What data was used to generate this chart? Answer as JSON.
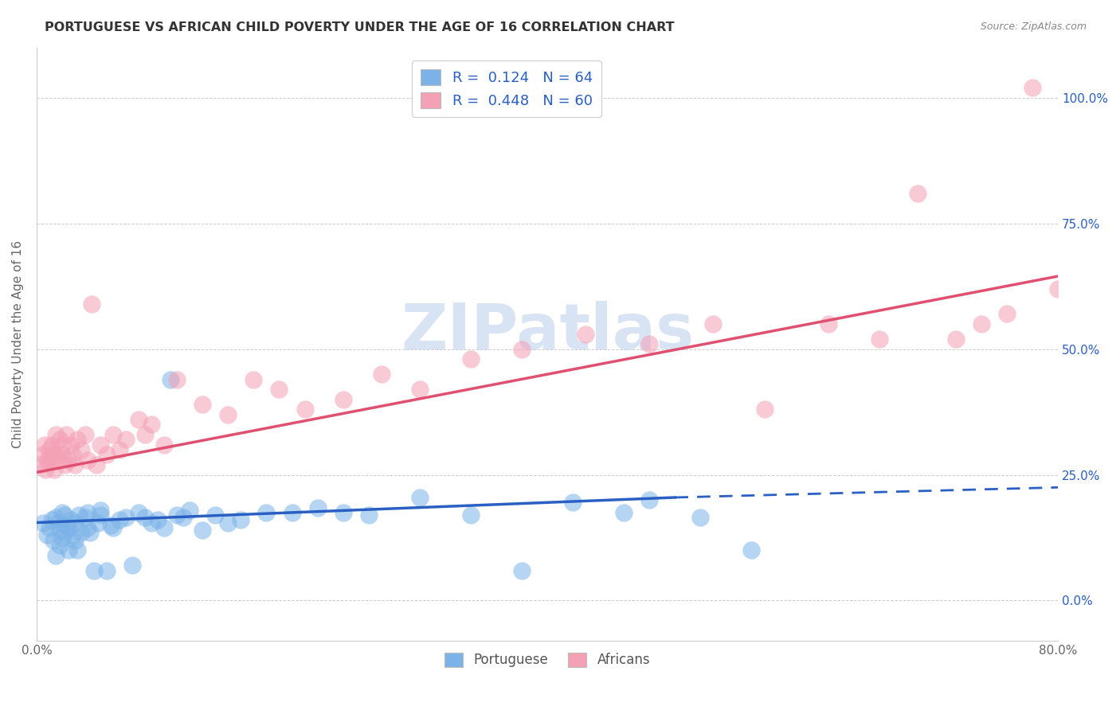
{
  "title": "PORTUGUESE VS AFRICAN CHILD POVERTY UNDER THE AGE OF 16 CORRELATION CHART",
  "source": "Source: ZipAtlas.com",
  "ylabel": "Child Poverty Under the Age of 16",
  "xlim": [
    0.0,
    0.8
  ],
  "ylim": [
    -0.08,
    1.1
  ],
  "yticks": [
    0.0,
    0.25,
    0.5,
    0.75,
    1.0
  ],
  "xticks": [
    0.0,
    0.8
  ],
  "portuguese_color": "#7ab3e8",
  "african_color": "#f4a0b5",
  "portuguese_line_color": "#2a5fc4",
  "african_line_color": "#e05070",
  "watermark_color": "#c8d8ee",
  "watermark": "ZIPatlas",
  "portuguese_R": 0.124,
  "portuguese_N": 64,
  "african_R": 0.448,
  "african_N": 60,
  "port_line_solid_end": 0.5,
  "port_line_dash_start": 0.5,
  "port_line_dash_end": 0.8,
  "port_line_y0": 0.155,
  "port_line_y1_solid": 0.205,
  "port_line_y1_dash": 0.225,
  "afr_line_y0": 0.255,
  "afr_line_y1": 0.645,
  "portuguese_scatter_x": [
    0.005,
    0.008,
    0.01,
    0.012,
    0.013,
    0.015,
    0.015,
    0.017,
    0.018,
    0.018,
    0.02,
    0.02,
    0.022,
    0.022,
    0.023,
    0.025,
    0.025,
    0.027,
    0.028,
    0.03,
    0.03,
    0.032,
    0.033,
    0.035,
    0.038,
    0.04,
    0.04,
    0.042,
    0.045,
    0.048,
    0.05,
    0.05,
    0.055,
    0.058,
    0.06,
    0.065,
    0.07,
    0.075,
    0.08,
    0.085,
    0.09,
    0.095,
    0.1,
    0.105,
    0.11,
    0.115,
    0.12,
    0.13,
    0.14,
    0.15,
    0.16,
    0.18,
    0.2,
    0.22,
    0.24,
    0.26,
    0.3,
    0.34,
    0.38,
    0.42,
    0.46,
    0.48,
    0.52,
    0.56
  ],
  "portuguese_scatter_y": [
    0.155,
    0.13,
    0.145,
    0.16,
    0.12,
    0.165,
    0.09,
    0.155,
    0.14,
    0.11,
    0.175,
    0.125,
    0.17,
    0.135,
    0.15,
    0.145,
    0.1,
    0.16,
    0.13,
    0.12,
    0.155,
    0.1,
    0.17,
    0.135,
    0.165,
    0.145,
    0.175,
    0.135,
    0.06,
    0.155,
    0.17,
    0.18,
    0.06,
    0.15,
    0.145,
    0.16,
    0.165,
    0.07,
    0.175,
    0.165,
    0.155,
    0.16,
    0.145,
    0.44,
    0.17,
    0.165,
    0.18,
    0.14,
    0.17,
    0.155,
    0.16,
    0.175,
    0.175,
    0.185,
    0.175,
    0.17,
    0.205,
    0.17,
    0.06,
    0.195,
    0.175,
    0.2,
    0.165,
    0.1
  ],
  "african_scatter_x": [
    0.003,
    0.005,
    0.006,
    0.007,
    0.008,
    0.01,
    0.01,
    0.012,
    0.013,
    0.014,
    0.015,
    0.015,
    0.017,
    0.018,
    0.02,
    0.02,
    0.022,
    0.023,
    0.025,
    0.027,
    0.028,
    0.03,
    0.032,
    0.035,
    0.038,
    0.04,
    0.043,
    0.047,
    0.05,
    0.055,
    0.06,
    0.065,
    0.07,
    0.08,
    0.085,
    0.09,
    0.1,
    0.11,
    0.13,
    0.15,
    0.17,
    0.19,
    0.21,
    0.24,
    0.27,
    0.3,
    0.34,
    0.38,
    0.43,
    0.48,
    0.53,
    0.57,
    0.62,
    0.66,
    0.69,
    0.72,
    0.74,
    0.76,
    0.78,
    0.8
  ],
  "african_scatter_y": [
    0.27,
    0.29,
    0.31,
    0.26,
    0.28,
    0.3,
    0.28,
    0.31,
    0.29,
    0.26,
    0.33,
    0.29,
    0.28,
    0.32,
    0.31,
    0.29,
    0.27,
    0.33,
    0.28,
    0.31,
    0.29,
    0.27,
    0.32,
    0.3,
    0.33,
    0.28,
    0.59,
    0.27,
    0.31,
    0.29,
    0.33,
    0.3,
    0.32,
    0.36,
    0.33,
    0.35,
    0.31,
    0.44,
    0.39,
    0.37,
    0.44,
    0.42,
    0.38,
    0.4,
    0.45,
    0.42,
    0.48,
    0.5,
    0.53,
    0.51,
    0.55,
    0.38,
    0.55,
    0.52,
    0.81,
    0.52,
    0.55,
    0.57,
    1.02,
    0.62
  ]
}
